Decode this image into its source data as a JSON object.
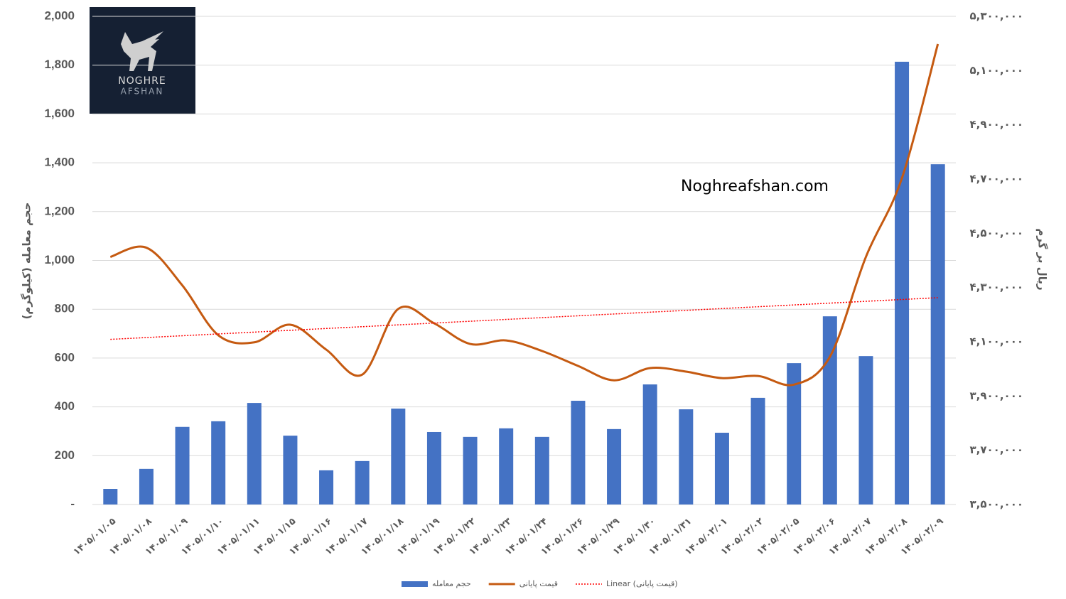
{
  "logo": {
    "line1": "NOGHRE",
    "line2": "AFSHAN"
  },
  "watermark": "Noghreafshan.com",
  "chart_data": {
    "type": "bar-line",
    "y_label": "حجم معامله (کیلوگرم)",
    "y2_label": "ریال بر گرم",
    "categories": [
      "۱۴۰۵/۰۱/۰۵",
      "۱۴۰۵/۰۱/۰۸",
      "۱۴۰۵/۰۱/۰۹",
      "۱۴۰۵/۰۱/۱۰",
      "۱۴۰۵/۰۱/۱۱",
      "۱۴۰۵/۰۱/۱۵",
      "۱۴۰۵/۰۱/۱۶",
      "۱۴۰۵/۰۱/۱۷",
      "۱۴۰۵/۰۱/۱۸",
      "۱۴۰۵/۰۱/۱۹",
      "۱۴۰۵/۰۱/۲۲",
      "۱۴۰۵/۰۱/۲۳",
      "۱۴۰۵/۰۱/۲۴",
      "۱۴۰۵/۰۱/۲۶",
      "۱۴۰۵/۰۱/۲۹",
      "۱۴۰۵/۰۱/۳۰",
      "۱۴۰۵/۰۱/۳۱",
      "۱۴۰۵/۰۲/۰۱",
      "۱۴۰۵/۰۲/۰۲",
      "۱۴۰۵/۰۲/۰۵",
      "۱۴۰۵/۰۲/۰۶",
      "۱۴۰۵/۰۲/۰۷",
      "۱۴۰۵/۰۲/۰۸",
      "۱۴۰۵/۰۲/۰۹"
    ],
    "series": [
      {
        "name": "حجم معامله",
        "type": "bar",
        "color": "#4472c4",
        "values": [
          64,
          146,
          318,
          341,
          416,
          282,
          140,
          178,
          393,
          297,
          277,
          312,
          277,
          425,
          309,
          492,
          390,
          294,
          437,
          579,
          771,
          608,
          1814,
          1394
        ]
      },
      {
        "name": "قیمت پایانی",
        "type": "line",
        "axis": "y2",
        "color": "#c55a11",
        "values": [
          4413000,
          4447000,
          4308000,
          4124000,
          4098000,
          4163000,
          4071000,
          3979000,
          4221000,
          4168000,
          4092000,
          4105000,
          4066000,
          4011000,
          3958000,
          4003000,
          3990000,
          3966000,
          3974000,
          3942000,
          4045000,
          4413000,
          4703000,
          5198000
        ]
      }
    ],
    "trendline": {
      "name": "Linear (قیمت پایانی)",
      "color": "#ff0000",
      "dashed": true
    },
    "ylim": [
      0,
      2000
    ],
    "yticks": [
      {
        "value": 0,
        "label": "-"
      },
      200,
      400,
      600,
      800,
      {
        "value": 1000,
        "label": "1,000"
      },
      {
        "value": 1200,
        "label": "1,200"
      },
      {
        "value": 1400,
        "label": "1,400"
      },
      {
        "value": 1600,
        "label": "1,600"
      },
      {
        "value": 1800,
        "label": "1,800"
      },
      {
        "value": 2000,
        "label": "2,000"
      }
    ],
    "y2lim": [
      3500000,
      5300000
    ],
    "y2ticks": [
      {
        "value": 3500000,
        "label": "۳,۵۰۰,۰۰۰"
      },
      {
        "value": 3700000,
        "label": "۳,۷۰۰,۰۰۰"
      },
      {
        "value": 3900000,
        "label": "۳,۹۰۰,۰۰۰"
      },
      {
        "value": 4100000,
        "label": "۴,۱۰۰,۰۰۰"
      },
      {
        "value": 4300000,
        "label": "۴,۳۰۰,۰۰۰"
      },
      {
        "value": 4500000,
        "label": "۴,۵۰۰,۰۰۰"
      },
      {
        "value": 4700000,
        "label": "۴,۷۰۰,۰۰۰"
      },
      {
        "value": 4900000,
        "label": "۴,۹۰۰,۰۰۰"
      },
      {
        "value": 5100000,
        "label": "۵,۱۰۰,۰۰۰"
      },
      {
        "value": 5300000,
        "label": "۵,۳۰۰,۰۰۰"
      }
    ],
    "grid": true
  }
}
